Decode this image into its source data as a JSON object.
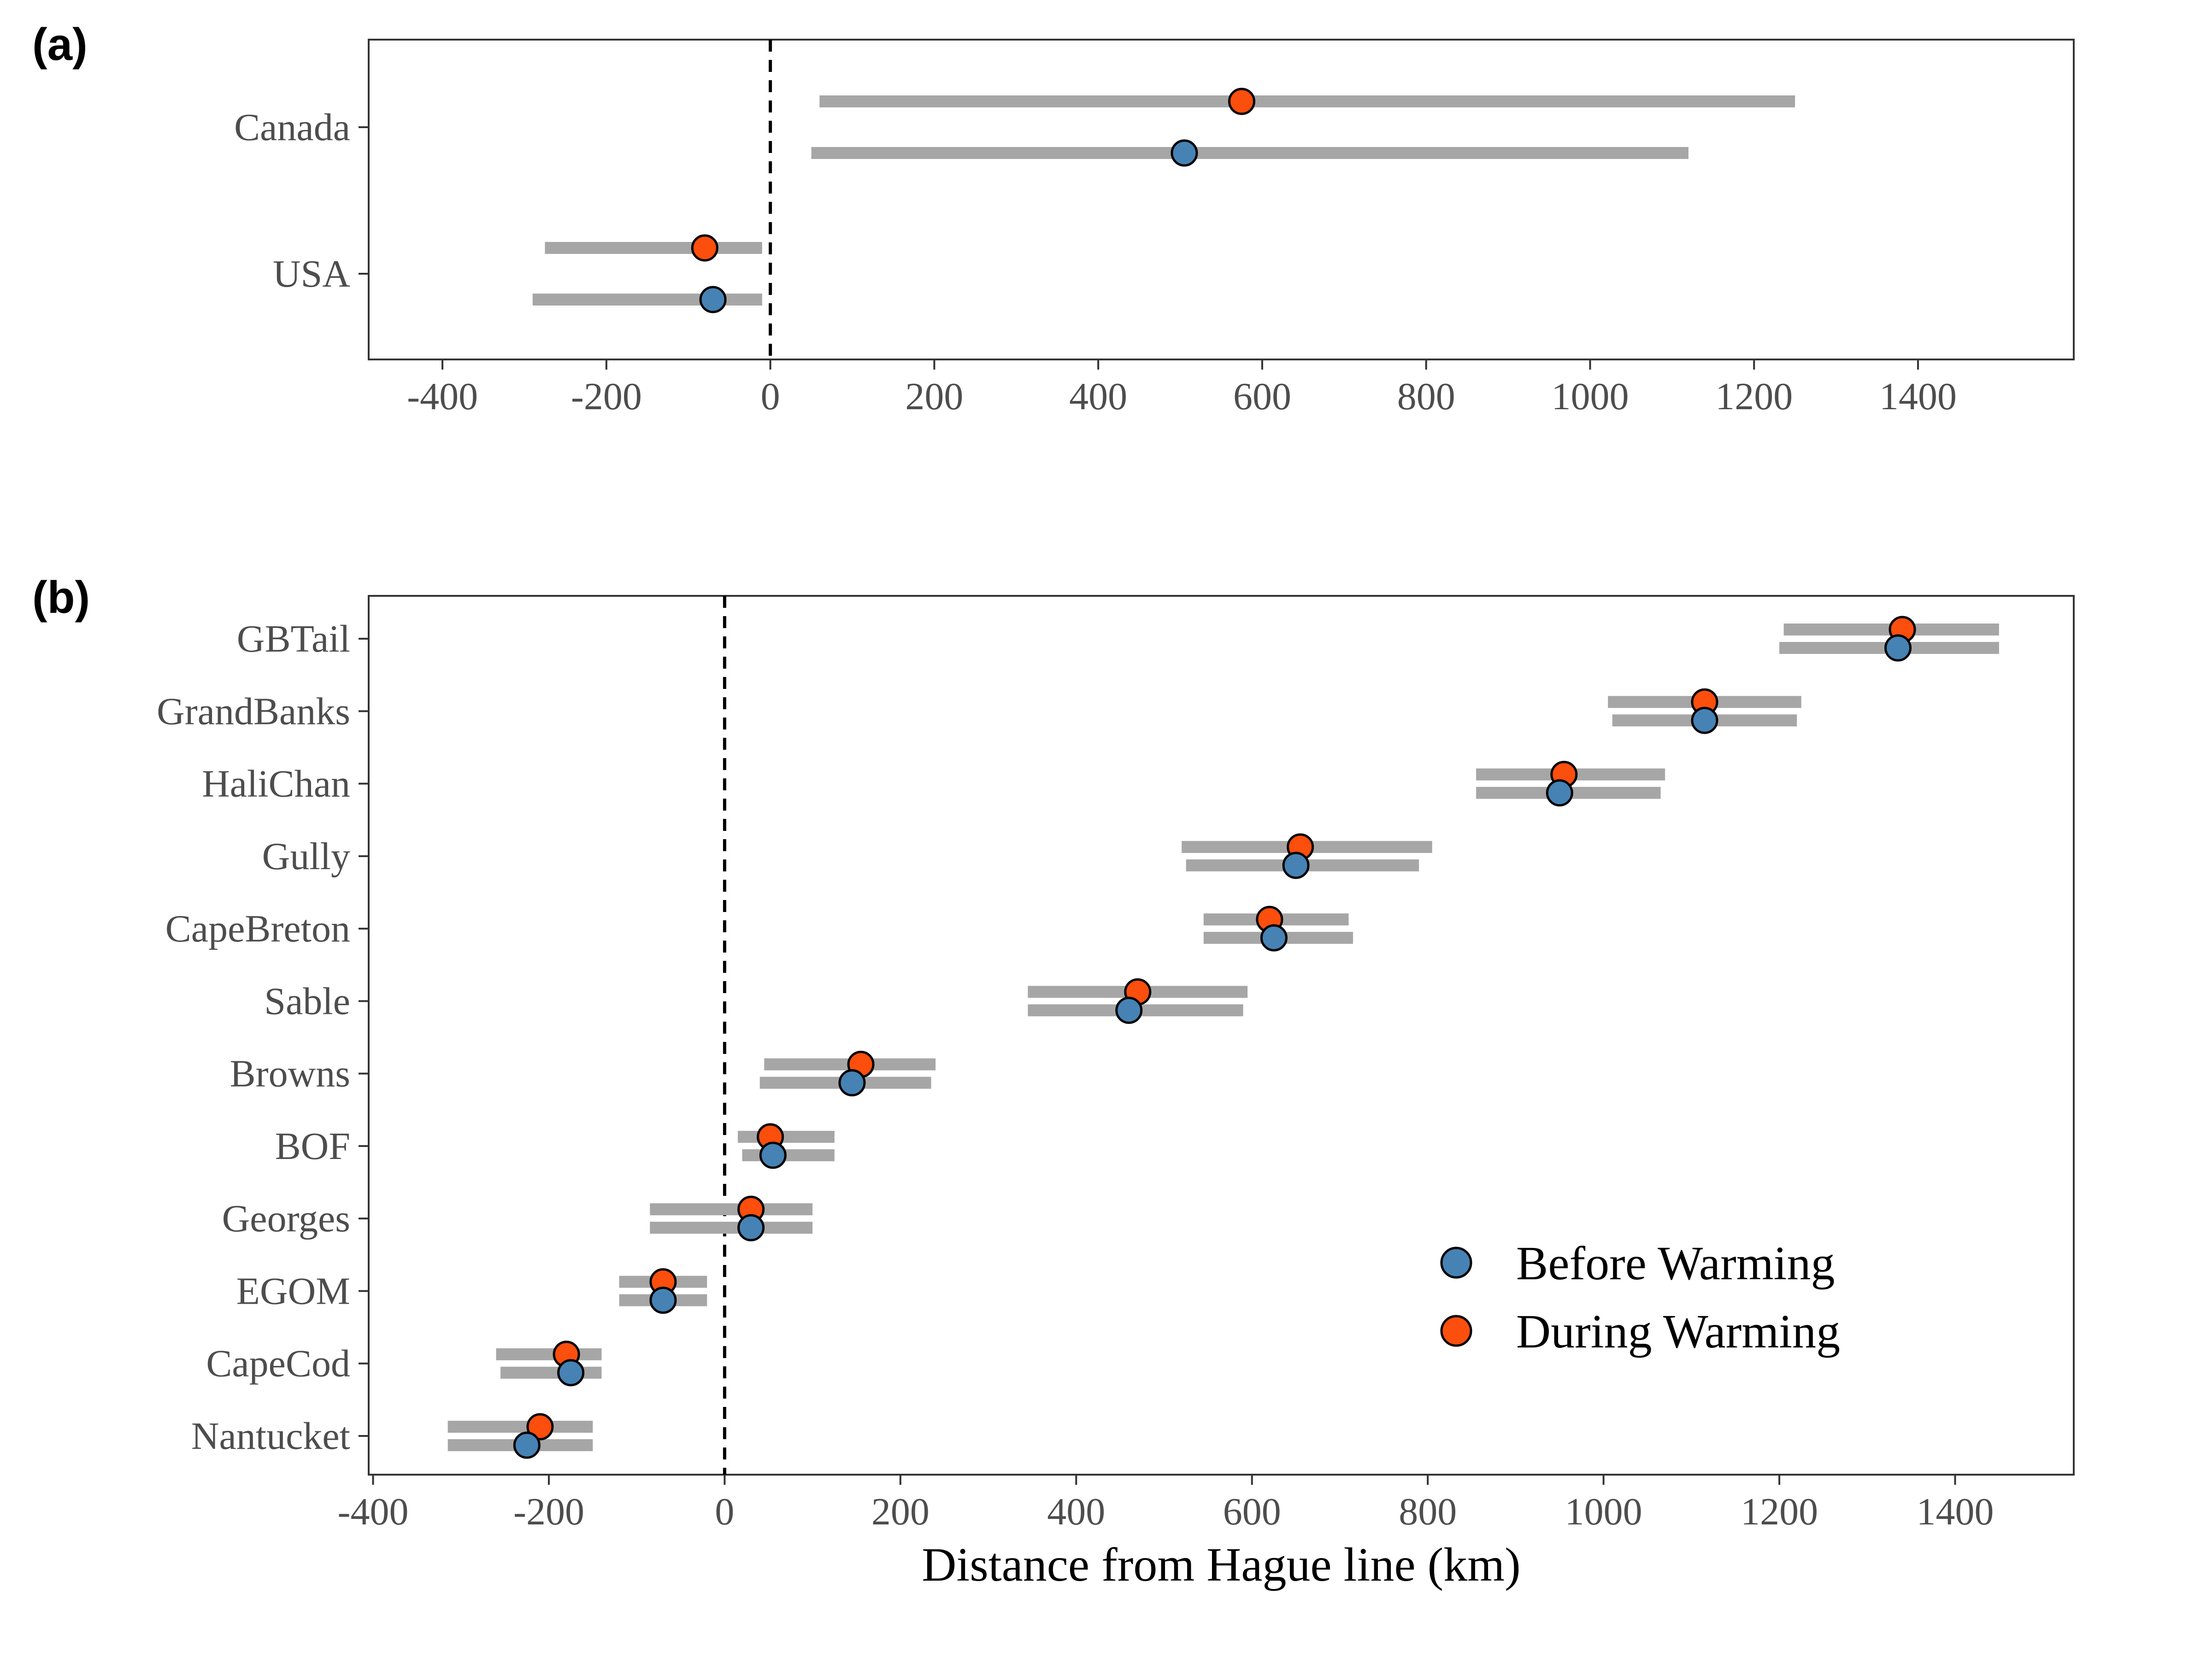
{
  "chart_data": [
    {
      "type": "scatter",
      "panel_label": "(a)",
      "xlabel": "",
      "xlim": [
        -490,
        1590
      ],
      "xticks": [
        -400,
        -200,
        0,
        200,
        400,
        600,
        800,
        1000,
        1200,
        1400
      ],
      "categories": [
        "Canada",
        "USA"
      ],
      "series": [
        {
          "name": "During Warming",
          "color": "#fc4e0d",
          "points": [
            {
              "category": "Canada",
              "x": 575,
              "lo": 60,
              "hi": 1250
            },
            {
              "category": "USA",
              "x": -80,
              "lo": -275,
              "hi": -10
            }
          ]
        },
        {
          "name": "Before Warming",
          "color": "#4682b4",
          "points": [
            {
              "category": "Canada",
              "x": 505,
              "lo": 50,
              "hi": 1120
            },
            {
              "category": "USA",
              "x": -70,
              "lo": -290,
              "hi": -10
            }
          ]
        }
      ],
      "reference_line_x": 0,
      "grid": false
    },
    {
      "type": "scatter",
      "panel_label": "(b)",
      "xlabel": "Distance from Hague line (km)",
      "xlim": [
        -405,
        1535
      ],
      "xticks": [
        -400,
        -200,
        0,
        200,
        400,
        600,
        800,
        1000,
        1200,
        1400
      ],
      "categories": [
        "GBTail",
        "GrandBanks",
        "HaliChan",
        "Gully",
        "CapeBreton",
        "Sable",
        "Browns",
        "BOF",
        "Georges",
        "EGOM",
        "CapeCod",
        "Nantucket"
      ],
      "series": [
        {
          "name": "During Warming",
          "color": "#fc4e0d",
          "points": [
            {
              "category": "GBTail",
              "x": 1340,
              "lo": 1205,
              "hi": 1450
            },
            {
              "category": "GrandBanks",
              "x": 1115,
              "lo": 1005,
              "hi": 1225
            },
            {
              "category": "HaliChan",
              "x": 955,
              "lo": 855,
              "hi": 1070
            },
            {
              "category": "Gully",
              "x": 655,
              "lo": 520,
              "hi": 805
            },
            {
              "category": "CapeBreton",
              "x": 620,
              "lo": 545,
              "hi": 710
            },
            {
              "category": "Sable",
              "x": 470,
              "lo": 345,
              "hi": 595
            },
            {
              "category": "Browns",
              "x": 155,
              "lo": 45,
              "hi": 240
            },
            {
              "category": "BOF",
              "x": 52,
              "lo": 15,
              "hi": 125
            },
            {
              "category": "Georges",
              "x": 30,
              "lo": -85,
              "hi": 100
            },
            {
              "category": "EGOM",
              "x": -70,
              "lo": -120,
              "hi": -20
            },
            {
              "category": "CapeCod",
              "x": -180,
              "lo": -260,
              "hi": -140
            },
            {
              "category": "Nantucket",
              "x": -210,
              "lo": -315,
              "hi": -150
            }
          ]
        },
        {
          "name": "Before Warming",
          "color": "#4682b4",
          "points": [
            {
              "category": "GBTail",
              "x": 1335,
              "lo": 1200,
              "hi": 1450
            },
            {
              "category": "GrandBanks",
              "x": 1115,
              "lo": 1010,
              "hi": 1220
            },
            {
              "category": "HaliChan",
              "x": 950,
              "lo": 855,
              "hi": 1065
            },
            {
              "category": "Gully",
              "x": 650,
              "lo": 525,
              "hi": 790
            },
            {
              "category": "CapeBreton",
              "x": 625,
              "lo": 545,
              "hi": 715
            },
            {
              "category": "Sable",
              "x": 460,
              "lo": 345,
              "hi": 590
            },
            {
              "category": "Browns",
              "x": 145,
              "lo": 40,
              "hi": 235
            },
            {
              "category": "BOF",
              "x": 55,
              "lo": 20,
              "hi": 125
            },
            {
              "category": "Georges",
              "x": 30,
              "lo": -85,
              "hi": 100
            },
            {
              "category": "EGOM",
              "x": -70,
              "lo": -120,
              "hi": -20
            },
            {
              "category": "CapeCod",
              "x": -175,
              "lo": -255,
              "hi": -140
            },
            {
              "category": "Nantucket",
              "x": -225,
              "lo": -315,
              "hi": -150
            }
          ]
        }
      ],
      "reference_line_x": 0,
      "grid": false,
      "legend": {
        "position": "bottom-right",
        "entries": [
          {
            "label": "Before Warming",
            "color": "#4682b4"
          },
          {
            "label": "During Warming",
            "color": "#fc4e0d"
          }
        ]
      }
    }
  ]
}
